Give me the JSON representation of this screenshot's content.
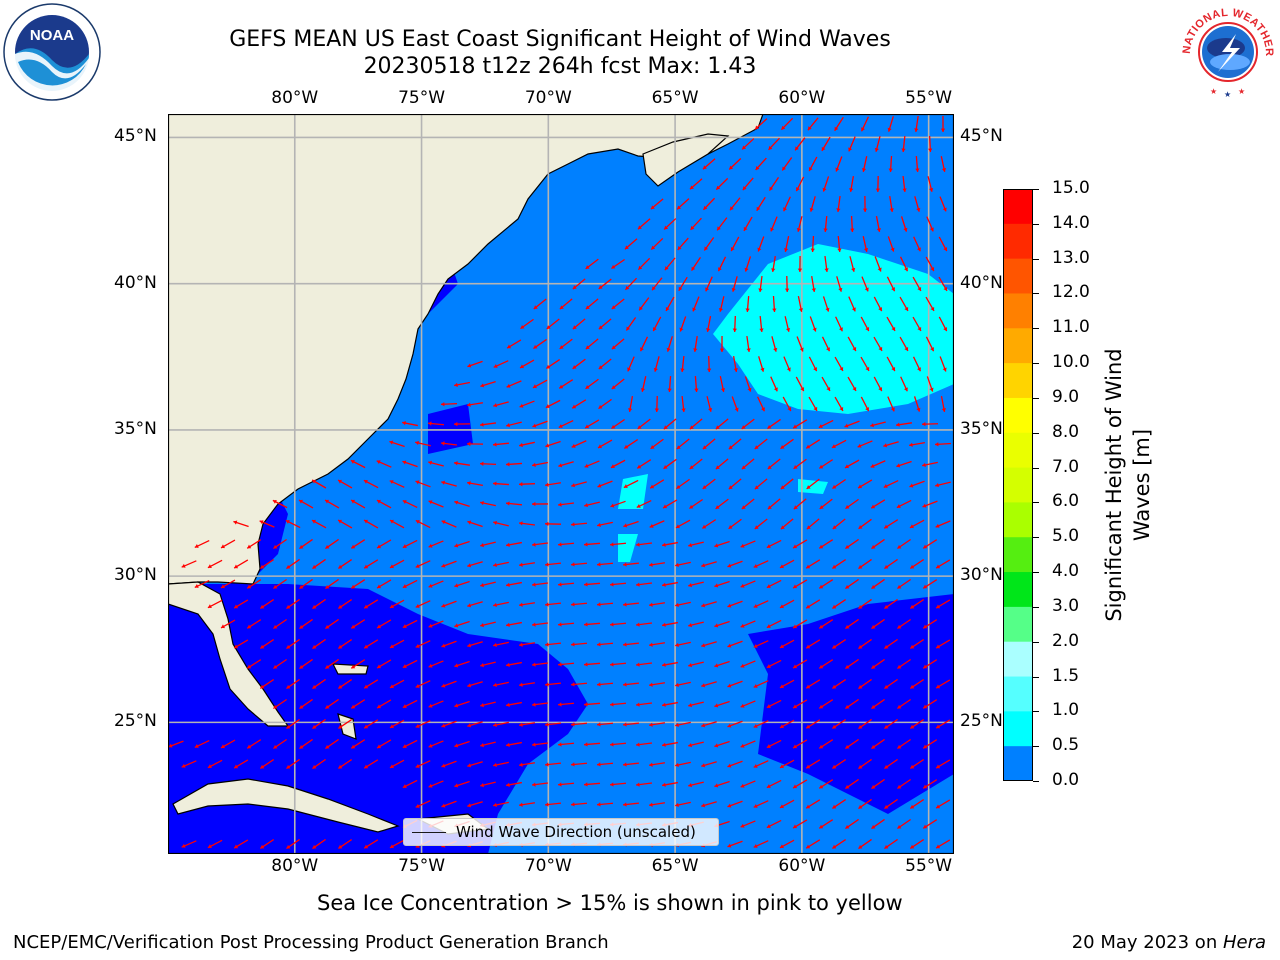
{
  "title": {
    "line1": "GEFS MEAN US East Coast Significant Height of Wind Waves",
    "line2": "20230518 t12z 264h fcst   Max: 1.43"
  },
  "map": {
    "lon_range": [
      -85,
      -54
    ],
    "lat_range": [
      20.5,
      45.8
    ],
    "lon_ticks": [
      "80°W",
      "75°W",
      "70°W",
      "65°W",
      "60°W",
      "55°W"
    ],
    "lat_ticks": [
      "45°N",
      "40°N",
      "35°N",
      "30°N",
      "25°N"
    ],
    "gridlines": true,
    "land_color": "#efeedc",
    "grid_color": "#b4b4b4"
  },
  "legend": {
    "label": "Wind Wave Direction (unscaled)",
    "placement": "lower-center"
  },
  "colorbar": {
    "label": "Significant Height of Wind Waves [m]",
    "ticks": [
      "15.0",
      "14.0",
      "13.0",
      "12.0",
      "11.0",
      "10.0",
      "9.0",
      "8.0",
      "7.0",
      "6.0",
      "5.0",
      "4.0",
      "3.0",
      "2.0",
      "1.5",
      "1.0",
      "0.5",
      "0.0"
    ],
    "colors_top_to_bottom": [
      "#ff0000",
      "#ff2a00",
      "#ff5500",
      "#ff8000",
      "#ffaa00",
      "#ffd400",
      "#ffff00",
      "#eaff00",
      "#d4ff00",
      "#aaff00",
      "#55ee11",
      "#00e619",
      "#55ff88",
      "#aaffff",
      "#55ffff",
      "#00ffff",
      "#0080ff",
      "#0000ff"
    ]
  },
  "field_colors": {
    "low": "#0000ff",
    "mid": "#0080ff",
    "high": "#00ffff",
    "arrow": "#ff0000"
  },
  "caption": "Sea Ice Concentration > 15% is shown in pink to yellow",
  "footer": {
    "left": "NCEP/EMC/Verification Post Processing Product Generation Branch",
    "right_date": "20 May 2023 on ",
    "right_host": "Hera"
  },
  "logos": {
    "noaa": "NOAA",
    "nws": "NATIONAL WEATHER SERVICE"
  }
}
